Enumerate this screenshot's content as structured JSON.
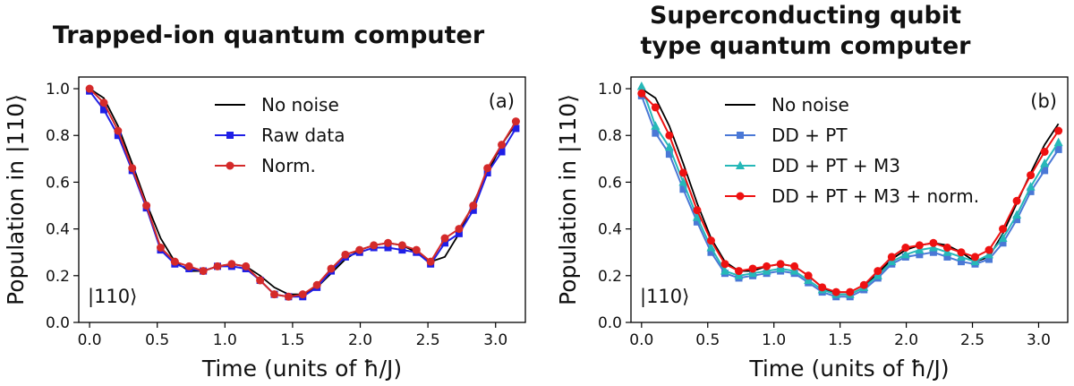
{
  "chart_data": [
    {
      "type": "line",
      "title": "Trapped-ion quantum computer",
      "xlabel": "Time (units of ħ/J)",
      "ylabel": "Population in |110⟩",
      "panel_label": "(a)",
      "state_label": "|110⟩",
      "xlim": [
        -0.08,
        3.22
      ],
      "ylim": [
        0.0,
        1.05
      ],
      "xticks": [
        "0.0",
        "0.5",
        "1.0",
        "1.5",
        "2.0",
        "2.5",
        "3.0"
      ],
      "yticks": [
        "0.0",
        "0.2",
        "0.4",
        "0.6",
        "0.8",
        "1.0"
      ],
      "legend_position": "upper-right",
      "x": [
        0.0,
        0.105,
        0.21,
        0.315,
        0.42,
        0.525,
        0.63,
        0.735,
        0.84,
        0.945,
        1.05,
        1.155,
        1.26,
        1.365,
        1.47,
        1.575,
        1.68,
        1.785,
        1.89,
        1.995,
        2.1,
        2.205,
        2.31,
        2.415,
        2.52,
        2.625,
        2.73,
        2.835,
        2.94,
        3.045,
        3.15
      ],
      "series": [
        {
          "name": "No noise",
          "color": "#000000",
          "marker": "none",
          "values": [
            1.0,
            0.96,
            0.84,
            0.68,
            0.51,
            0.36,
            0.26,
            0.22,
            0.22,
            0.24,
            0.25,
            0.24,
            0.2,
            0.15,
            0.12,
            0.12,
            0.15,
            0.21,
            0.27,
            0.31,
            0.33,
            0.34,
            0.33,
            0.3,
            0.26,
            0.28,
            0.38,
            0.51,
            0.64,
            0.76,
            0.85
          ]
        },
        {
          "name": "Raw data",
          "color": "#1f1fe6",
          "marker": "square",
          "values": [
            0.99,
            0.91,
            0.8,
            0.65,
            0.49,
            0.31,
            0.25,
            0.23,
            0.22,
            0.24,
            0.24,
            0.23,
            0.18,
            0.12,
            0.11,
            0.11,
            0.15,
            0.22,
            0.28,
            0.3,
            0.32,
            0.32,
            0.31,
            0.3,
            0.25,
            0.34,
            0.38,
            0.48,
            0.64,
            0.73,
            0.83
          ]
        },
        {
          "name": "Norm.",
          "color": "#d42a2a",
          "marker": "circle",
          "values": [
            1.0,
            0.94,
            0.82,
            0.66,
            0.5,
            0.32,
            0.26,
            0.24,
            0.22,
            0.24,
            0.25,
            0.24,
            0.18,
            0.12,
            0.11,
            0.12,
            0.16,
            0.23,
            0.29,
            0.31,
            0.33,
            0.34,
            0.33,
            0.31,
            0.26,
            0.36,
            0.4,
            0.5,
            0.66,
            0.76,
            0.86
          ]
        }
      ]
    },
    {
      "type": "line",
      "title": "Superconducting qubit type quantum computer",
      "title_lines": [
        "Superconducting qubit",
        "type quantum computer"
      ],
      "xlabel": "Time (units of ħ/J)",
      "ylabel": "Population in |110⟩",
      "panel_label": "(b)",
      "state_label": "|110⟩",
      "xlim": [
        -0.08,
        3.22
      ],
      "ylim": [
        0.0,
        1.05
      ],
      "xticks": [
        "0.0",
        "0.5",
        "1.0",
        "1.5",
        "2.0",
        "2.5",
        "3.0"
      ],
      "yticks": [
        "0.0",
        "0.2",
        "0.4",
        "0.6",
        "0.8",
        "1.0"
      ],
      "legend_position": "upper-right",
      "x": [
        0.0,
        0.105,
        0.21,
        0.315,
        0.42,
        0.525,
        0.63,
        0.735,
        0.84,
        0.945,
        1.05,
        1.155,
        1.26,
        1.365,
        1.47,
        1.575,
        1.68,
        1.785,
        1.89,
        1.995,
        2.1,
        2.205,
        2.31,
        2.415,
        2.52,
        2.625,
        2.73,
        2.835,
        2.94,
        3.045,
        3.15
      ],
      "series": [
        {
          "name": "No noise",
          "color": "#000000",
          "marker": "none",
          "values": [
            1.0,
            0.96,
            0.84,
            0.68,
            0.51,
            0.36,
            0.26,
            0.22,
            0.22,
            0.24,
            0.25,
            0.24,
            0.2,
            0.15,
            0.12,
            0.12,
            0.15,
            0.21,
            0.27,
            0.31,
            0.33,
            0.34,
            0.33,
            0.3,
            0.26,
            0.28,
            0.38,
            0.51,
            0.64,
            0.76,
            0.85
          ]
        },
        {
          "name": "DD + PT",
          "color": "#4a78d6",
          "marker": "square",
          "values": [
            0.97,
            0.81,
            0.72,
            0.57,
            0.43,
            0.3,
            0.21,
            0.19,
            0.2,
            0.21,
            0.22,
            0.21,
            0.17,
            0.13,
            0.11,
            0.11,
            0.14,
            0.19,
            0.25,
            0.28,
            0.29,
            0.3,
            0.28,
            0.26,
            0.25,
            0.27,
            0.34,
            0.44,
            0.56,
            0.65,
            0.74
          ]
        },
        {
          "name": "DD + PT + M3",
          "color": "#26b8b8",
          "marker": "triangle",
          "values": [
            1.01,
            0.84,
            0.75,
            0.6,
            0.45,
            0.32,
            0.22,
            0.2,
            0.21,
            0.22,
            0.23,
            0.22,
            0.18,
            0.14,
            0.12,
            0.12,
            0.15,
            0.2,
            0.26,
            0.29,
            0.31,
            0.32,
            0.3,
            0.28,
            0.26,
            0.29,
            0.36,
            0.46,
            0.58,
            0.68,
            0.77
          ]
        },
        {
          "name": "DD + PT + M3 + norm.",
          "color": "#ee1111",
          "marker": "circle",
          "values": [
            0.98,
            0.92,
            0.8,
            0.64,
            0.48,
            0.35,
            0.25,
            0.22,
            0.23,
            0.24,
            0.25,
            0.24,
            0.2,
            0.15,
            0.13,
            0.13,
            0.16,
            0.22,
            0.28,
            0.32,
            0.33,
            0.34,
            0.32,
            0.3,
            0.28,
            0.31,
            0.4,
            0.52,
            0.63,
            0.73,
            0.82
          ]
        }
      ]
    }
  ]
}
